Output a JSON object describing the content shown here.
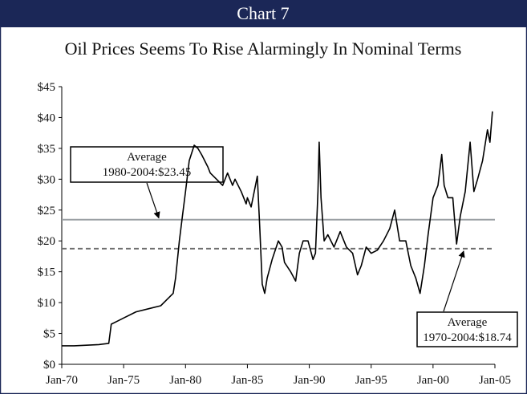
{
  "chart_data": {
    "type": "line",
    "header": "Chart 7",
    "title": "Oil Prices Seems To Rise Alarmingly In Nominal Terms",
    "xlim": [
      1970,
      2005
    ],
    "xticks": [
      {
        "value": 1970,
        "label": "Jan-70"
      },
      {
        "value": 1975,
        "label": "Jan-75"
      },
      {
        "value": 1980,
        "label": "Jan-80"
      },
      {
        "value": 1985,
        "label": "Jan-85"
      },
      {
        "value": 1990,
        "label": "Jan-90"
      },
      {
        "value": 1995,
        "label": "Jan-95"
      },
      {
        "value": 2000,
        "label": "Jan-00"
      },
      {
        "value": 2005,
        "label": "Jan-05"
      }
    ],
    "ylim": [
      0,
      45
    ],
    "yticks": [
      {
        "value": 0,
        "label": "$0"
      },
      {
        "value": 5,
        "label": "$5"
      },
      {
        "value": 10,
        "label": "$10"
      },
      {
        "value": 15,
        "label": "$15"
      },
      {
        "value": 20,
        "label": "$20"
      },
      {
        "value": 25,
        "label": "$25"
      },
      {
        "value": 30,
        "label": "$30"
      },
      {
        "value": 35,
        "label": "$35"
      },
      {
        "value": 40,
        "label": "$40"
      },
      {
        "value": 45,
        "label": "$45"
      }
    ],
    "series": [
      {
        "color": "#000000",
        "x": [
          1970,
          1971,
          1972,
          1973,
          1973.8,
          1974,
          1974.5,
          1975,
          1976,
          1977,
          1978,
          1978.5,
          1979,
          1979.2,
          1979.5,
          1979.75,
          1980,
          1980.3,
          1980.7,
          1981,
          1981.3,
          1981.8,
          1982,
          1982.5,
          1983,
          1983.4,
          1983.8,
          1984,
          1984.5,
          1984.9,
          1985,
          1985.3,
          1985.8,
          1986,
          1986.2,
          1986.4,
          1986.6,
          1987,
          1987.5,
          1987.8,
          1988,
          1988.5,
          1988.9,
          1989.2,
          1989.5,
          1989.9,
          1990.3,
          1990.5,
          1990.7,
          1990.8,
          1990.95,
          1991.2,
          1991.5,
          1992,
          1992.5,
          1993,
          1993.5,
          1993.9,
          1994.2,
          1994.6,
          1995,
          1995.5,
          1996,
          1996.5,
          1996.9,
          1997.3,
          1997.8,
          1998.2,
          1998.6,
          1998.95,
          1999.3,
          1999.6,
          2000,
          2000.4,
          2000.7,
          2000.9,
          2001.2,
          2001.6,
          2001.9,
          2002.2,
          2002.6,
          2003,
          2003.3,
          2003.6,
          2004,
          2004.4,
          2004.6,
          2004.8
        ],
        "values": [
          3.0,
          3.0,
          3.1,
          3.2,
          3.4,
          6.5,
          7.0,
          7.5,
          8.5,
          9.0,
          9.5,
          10.5,
          11.5,
          14,
          20,
          24,
          28,
          33,
          35.5,
          35,
          34,
          32,
          31,
          30,
          29,
          31,
          29,
          30,
          28,
          26,
          27,
          25.5,
          30.5,
          22,
          13,
          11.5,
          14,
          17,
          20,
          19,
          16.5,
          15,
          13.5,
          18,
          20,
          20,
          17,
          18,
          28,
          36,
          27,
          20,
          21,
          19,
          21.5,
          19,
          18,
          14.5,
          16,
          19,
          18,
          18.5,
          20,
          22,
          25,
          20,
          20,
          16,
          14,
          11.5,
          16,
          21,
          27,
          29,
          34,
          29,
          27,
          27,
          19.5,
          24,
          28,
          36,
          28,
          30,
          33,
          38,
          36,
          41
        ]
      }
    ],
    "average_lines": [
      {
        "value": 23.45,
        "color": "#9a9fa3",
        "dashed": false,
        "text": [
          "Average",
          "1980-2004:$23.45"
        ]
      },
      {
        "value": 18.74,
        "color": "#6e6e6e",
        "dashed": true,
        "text": [
          "Average",
          "1970-2004:$18.74"
        ]
      }
    ]
  }
}
